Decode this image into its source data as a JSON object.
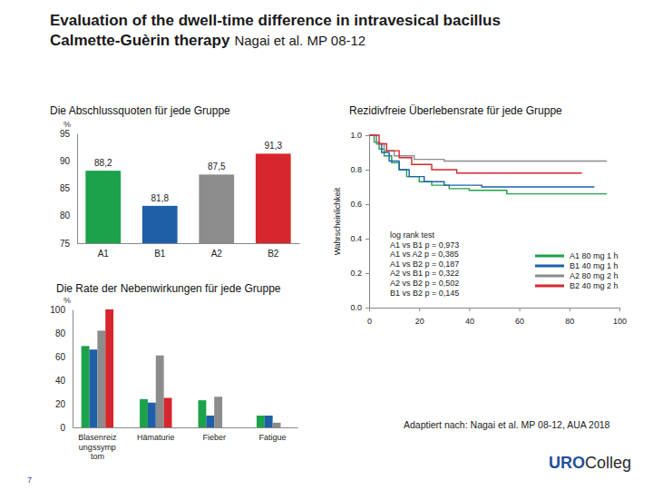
{
  "slide": {
    "title": [
      "Evaluation of the dwell-time difference in intravesical bacillus",
      "Calmette-Guèrin therapy"
    ],
    "citation": "Nagai et al. MP 08-12",
    "source": "Adaptiert nach: Nagai et al. MP 08-12, AUA 2018",
    "logo": [
      "URO",
      "Colleg"
    ],
    "page": 7
  },
  "chart_data": [
    {
      "type": "bar",
      "title": "Die Abschlussquoten für jede Gruppe",
      "y_label": "%",
      "categories": [
        "A1",
        "B1",
        "A2",
        "B2"
      ],
      "values": [
        88.2,
        81.8,
        87.5,
        91.3
      ],
      "value_labels": [
        "88,2",
        "81,8",
        "87,5",
        "91,3"
      ],
      "colors": [
        "#1ca24a",
        "#1f5fa8",
        "#8c8c8c",
        "#d7262d"
      ],
      "ylim": [
        75,
        95
      ],
      "yticks": [
        75,
        80,
        85,
        90,
        95
      ],
      "data_labels": true
    },
    {
      "type": "bar",
      "title": "Die Rate der Nebenwirkungen für jede Gruppe",
      "y_label": "%",
      "categories": [
        "Blasenreiz ungssymp tom",
        "Hämaturie",
        "Fieber",
        "Fatigue"
      ],
      "series": [
        {
          "color": "#1ca24a",
          "values": [
            69,
            24,
            23,
            10
          ]
        },
        {
          "color": "#1f5fa8",
          "values": [
            66,
            21,
            10,
            10
          ]
        },
        {
          "color": "#8c8c8c",
          "values": [
            82,
            61,
            26,
            4
          ]
        },
        {
          "color": "#d7262d",
          "values": [
            100,
            25,
            0,
            0
          ]
        }
      ],
      "ylim": [
        0,
        100
      ],
      "yticks": [
        0,
        20,
        40,
        60,
        80,
        100
      ]
    },
    {
      "type": "line",
      "title": "Rezidivfreie Überlebensrate für jede Gruppe",
      "y_label": "Wahrscheinlichkeit",
      "line_style": "step",
      "legend": "right",
      "series": [
        {
          "name": "A1 80 mg 1 h",
          "color": "#1ca24a",
          "x": [
            0,
            2,
            4,
            6,
            9,
            12,
            15,
            20,
            25,
            32,
            40,
            55,
            95
          ],
          "values": [
            1,
            0.96,
            0.92,
            0.88,
            0.84,
            0.8,
            0.76,
            0.73,
            0.71,
            0.69,
            0.68,
            0.66,
            0.66
          ]
        },
        {
          "name": "B1 40 mg 1 h",
          "color": "#1f5fa8",
          "x": [
            0,
            3,
            5,
            8,
            12,
            16,
            22,
            30,
            45,
            90
          ],
          "values": [
            1,
            0.95,
            0.9,
            0.85,
            0.8,
            0.76,
            0.73,
            0.71,
            0.7,
            0.7
          ]
        },
        {
          "name": "A2 80 mg 2 h",
          "color": "#8c8c8c",
          "x": [
            0,
            3,
            6,
            10,
            18,
            30,
            95
          ],
          "values": [
            1,
            0.95,
            0.91,
            0.88,
            0.86,
            0.85,
            0.85
          ]
        },
        {
          "name": "B2 40 mg 2 h",
          "color": "#d7262d",
          "x": [
            0,
            4,
            7,
            12,
            17,
            25,
            35,
            85
          ],
          "values": [
            1,
            0.95,
            0.91,
            0.87,
            0.83,
            0.8,
            0.78,
            0.78
          ]
        }
      ],
      "annotations": [
        "log rank test",
        "A1 vs B1 p = 0,973",
        "A1 vs A2 p = 0,385",
        "A1 vs B2 p = 0,187",
        "A2 vs B1 p = 0,322",
        "A2 vs B2 p = 0,502",
        "B1 vs B2 p = 0,145"
      ],
      "xlim": [
        0,
        100
      ],
      "xticks": [
        0,
        20,
        40,
        60,
        80,
        100
      ],
      "ylim": [
        0,
        1
      ],
      "yticks": [
        {
          "value": 0,
          "label": "0.0"
        },
        0.2,
        0.4,
        0.6,
        0.8,
        {
          "value": 1,
          "label": "1.0"
        }
      ]
    }
  ]
}
